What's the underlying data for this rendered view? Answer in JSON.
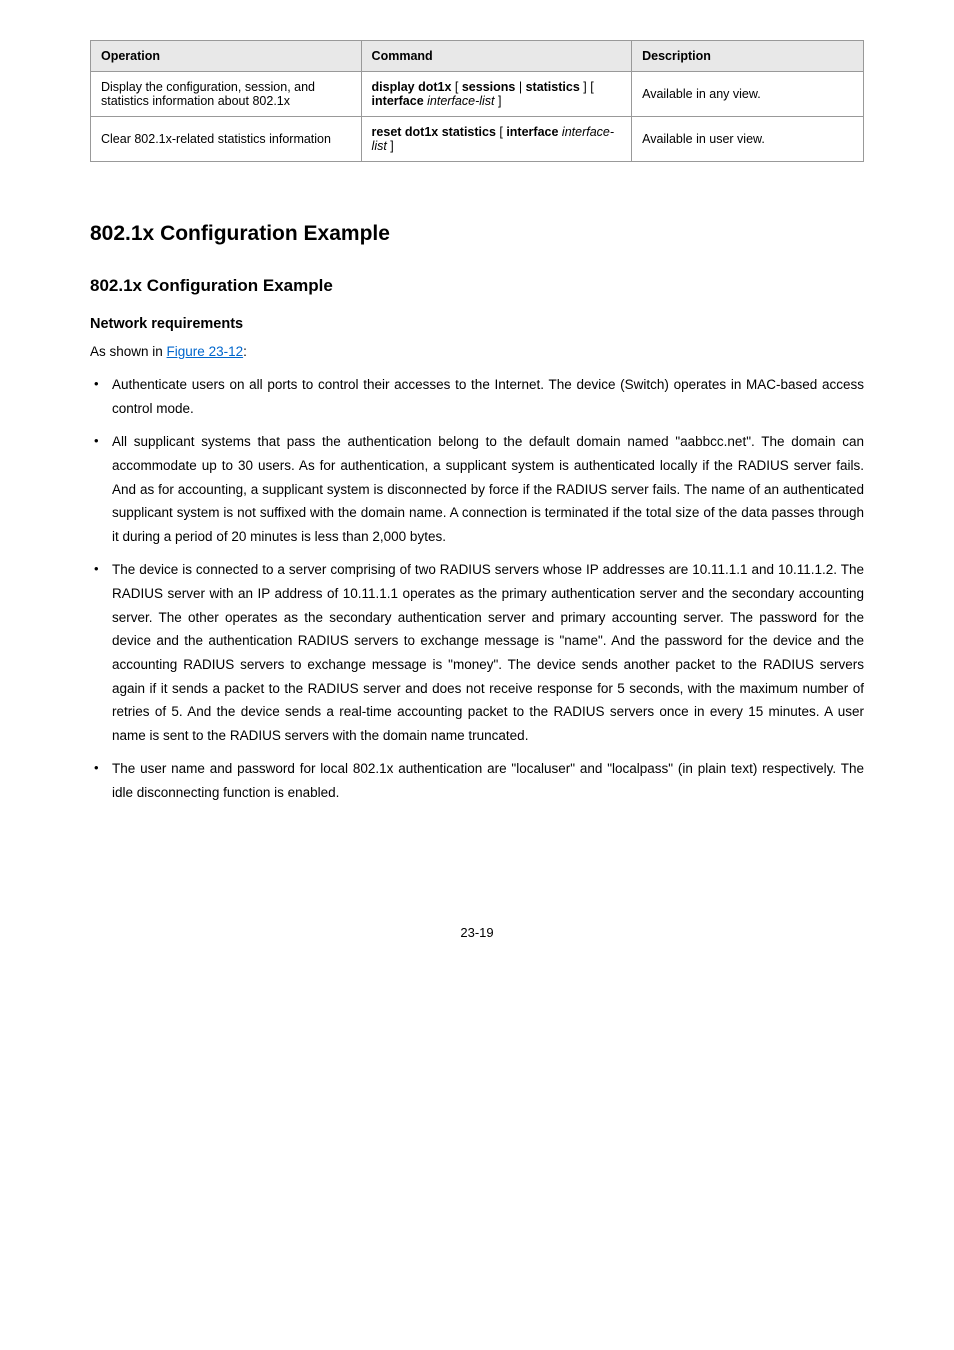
{
  "table": {
    "headers": [
      "Operation",
      "Command",
      "Description"
    ],
    "rows": [
      {
        "operation": "Display the configuration, session, and statistics information about 802.1x",
        "description": "Available in any view."
      },
      {
        "operation": "Clear 802.1x-related statistics information",
        "description": "Available in user view."
      }
    ],
    "cmd1": {
      "p1": "display dot1x",
      "p2": " [ ",
      "p3": "sessions",
      "p4": " | ",
      "p5": "statistics",
      "p6": " ] [ ",
      "p7": "interface ",
      "p8": "interface-list",
      "p9": " ]"
    },
    "cmd2": {
      "p1": "reset dot1x statistics",
      "p2": " [ ",
      "p3": "interface ",
      "p4": "interface-list",
      "p5": " ]"
    }
  },
  "headings": {
    "h1": "802.1x Configuration Example",
    "h2": "802.1x Configuration Example",
    "h3": "Network requirements"
  },
  "intro": {
    "prefix": "As shown in ",
    "link": "Figure 23-12",
    "suffix": ":"
  },
  "bullets": {
    "b1": "Authenticate users on all ports to control their accesses to the Internet. The device (Switch) operates in MAC-based access control mode.",
    "b2": "All supplicant systems that pass the authentication belong to the default domain named \"aabbcc.net\". The domain can accommodate up to 30 users. As for authentication, a supplicant system is authenticated locally if the RADIUS server fails. And as for accounting, a supplicant system is disconnected by force if the RADIUS server fails. The name of an authenticated supplicant system is not suffixed with the domain name. A connection is terminated if the total size of the data passes through it during a period of 20 minutes is less than 2,000 bytes.",
    "b3": "The device is connected to a server comprising of two RADIUS servers whose IP addresses are 10.11.1.1 and 10.11.1.2. The RADIUS server with an IP address of 10.11.1.1 operates as the primary authentication server and the secondary accounting server. The other operates as the secondary authentication server and primary accounting server. The password for the device and the authentication RADIUS servers to exchange message is \"name\". And the password for the device and the accounting RADIUS servers to exchange message is \"money\". The device sends another packet to the RADIUS servers again if it sends a packet to the RADIUS server and does not receive response for 5 seconds, with the maximum number of retries of 5. And the device sends a real-time accounting packet to the RADIUS servers once in every 15 minutes. A user name is sent to the RADIUS servers with the domain name truncated.",
    "b4": "The user name and password for local 802.1x authentication are \"localuser\" and \"localpass\" (in plain text) respectively. The idle disconnecting function is enabled."
  },
  "page_number": "23-19"
}
